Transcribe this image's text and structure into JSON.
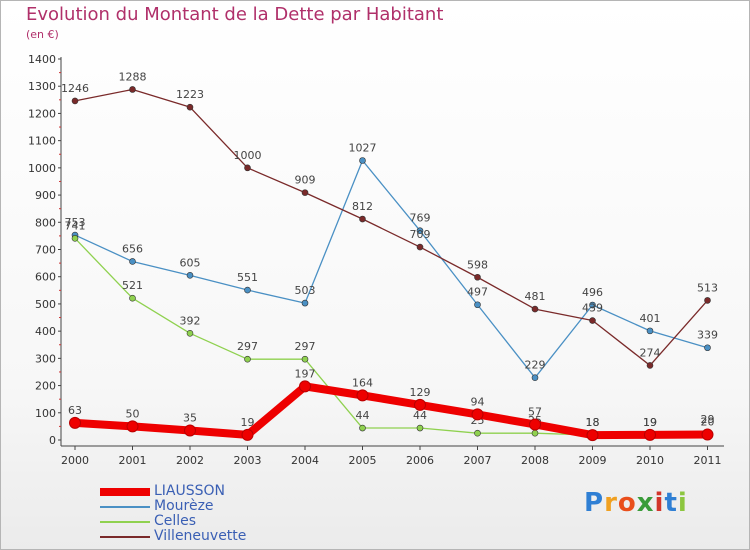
{
  "header": {
    "title": "Evolution du Montant de la Dette par Habitant",
    "subtitle": "(en €)"
  },
  "brand": {
    "letters": [
      "P",
      "r",
      "o",
      "x",
      "i",
      "t",
      "i"
    ]
  },
  "chart_data": {
    "type": "line",
    "x": [
      "2000",
      "2001",
      "2002",
      "2003",
      "2004",
      "2005",
      "2006",
      "2007",
      "2008",
      "2009",
      "2010",
      "2011"
    ],
    "ylim": [
      0,
      1400
    ],
    "yticks": [
      0,
      100,
      200,
      300,
      400,
      500,
      600,
      700,
      800,
      900,
      1000,
      1100,
      1200,
      1300,
      1400
    ],
    "grid": false,
    "legend_position": "bottom-left",
    "series": [
      {
        "name": "LIAUSSON",
        "color": "#ee0000",
        "emphasis": true,
        "values": [
          63,
          50,
          35,
          19,
          197,
          164,
          129,
          94,
          57,
          18,
          19,
          20
        ]
      },
      {
        "name": "Mourèze",
        "color": "#4a90c4",
        "values": [
          753,
          656,
          605,
          551,
          503,
          1027,
          769,
          497,
          229,
          496,
          401,
          339
        ]
      },
      {
        "name": "Celles",
        "color": "#8fd14f",
        "values": [
          741,
          521,
          392,
          297,
          297,
          44,
          44,
          25,
          25,
          18,
          19,
          29
        ]
      },
      {
        "name": "Villeneuvette",
        "color": "#7a2a2a",
        "values": [
          1246,
          1288,
          1223,
          1000,
          909,
          812,
          709,
          598,
          481,
          439,
          274,
          513
        ]
      }
    ]
  }
}
